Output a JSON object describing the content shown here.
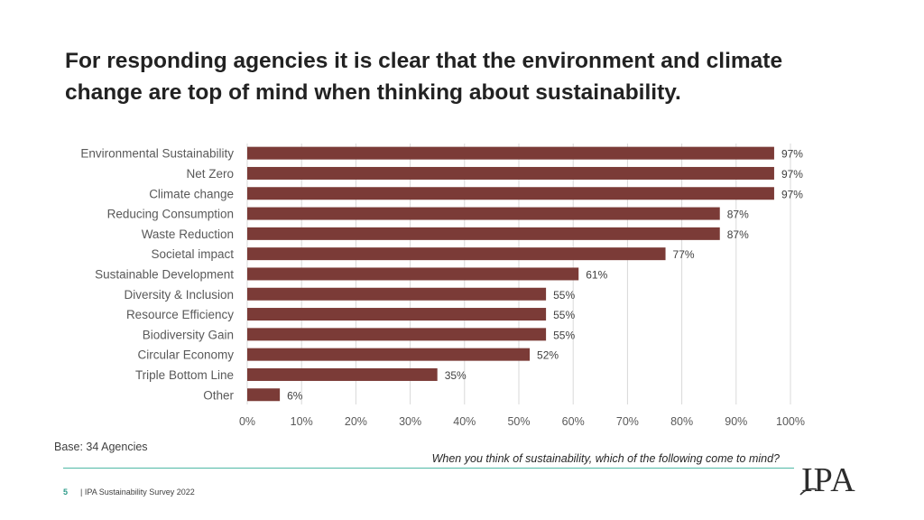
{
  "title": "For responding agencies it is clear that the environment and climate change are top of mind when thinking about sustainability.",
  "chart_data": {
    "type": "bar",
    "orientation": "horizontal",
    "categories": [
      "Environmental Sustainability",
      "Net Zero",
      "Climate change",
      "Reducing Consumption",
      "Waste Reduction",
      "Societal impact",
      "Sustainable Development",
      "Diversity & Inclusion",
      "Resource Efficiency",
      "Biodiversity Gain",
      "Circular Economy",
      "Triple Bottom Line",
      "Other"
    ],
    "values": [
      97,
      97,
      97,
      87,
      87,
      77,
      61,
      55,
      55,
      55,
      52,
      35,
      6
    ],
    "value_labels": [
      "97%",
      "97%",
      "97%",
      "87%",
      "87%",
      "77%",
      "61%",
      "55%",
      "55%",
      "55%",
      "52%",
      "35%",
      "6%"
    ],
    "xlim": [
      0,
      100
    ],
    "x_ticks": [
      0,
      10,
      20,
      30,
      40,
      50,
      60,
      70,
      80,
      90,
      100
    ],
    "x_tick_labels": [
      "0%",
      "10%",
      "20%",
      "30%",
      "40%",
      "50%",
      "60%",
      "70%",
      "80%",
      "90%",
      "100%"
    ],
    "grid": true,
    "bar_color": "#7b3b37",
    "xlabel": "",
    "ylabel": ""
  },
  "base_note": "Base: 34 Agencies",
  "question": "When you think of sustainability, which of the following come to mind?",
  "footer": {
    "page_number": "5",
    "survey_label": "| IPA Sustainability Survey 2022"
  },
  "logo_text": "IPA",
  "colors": {
    "accent": "#4fb9a6",
    "bar": "#7b3b37",
    "grid": "#d9d9d9"
  }
}
